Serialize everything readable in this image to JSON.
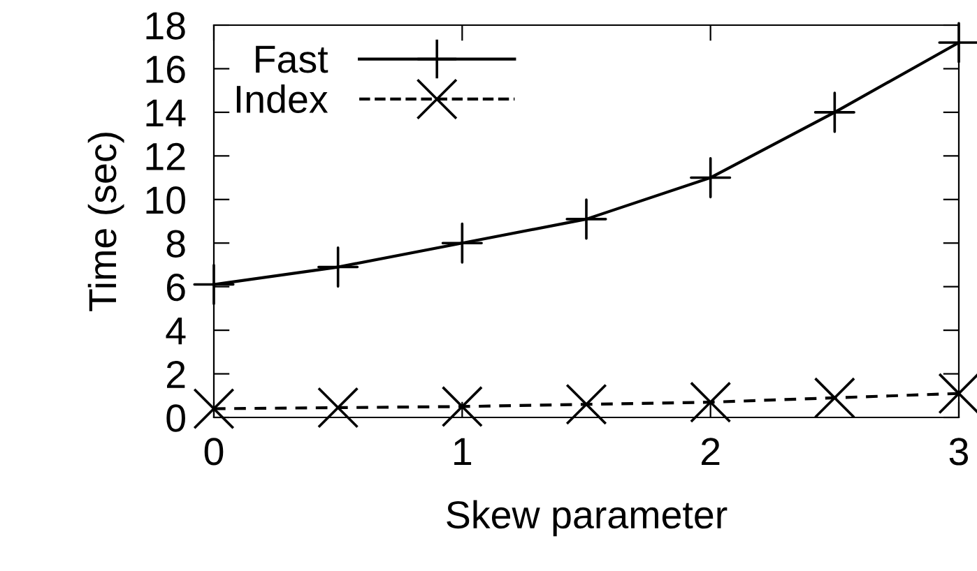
{
  "chart_data": {
    "type": "line",
    "xlabel": "Skew parameter",
    "ylabel": "Time (sec)",
    "x": [
      0,
      0.5,
      1,
      1.5,
      2,
      2.5,
      3
    ],
    "series": [
      {
        "name": "Fast",
        "color": "#000000",
        "values": [
          6.1,
          6.9,
          8.0,
          9.1,
          11.0,
          14.0,
          17.2
        ],
        "marker": "cross",
        "line_style": "solid"
      },
      {
        "name": "Index",
        "color": "#000000",
        "values": [
          0.4,
          0.45,
          0.5,
          0.6,
          0.7,
          0.9,
          1.1
        ],
        "marker": "x",
        "line_style": "dashed"
      }
    ],
    "xlim": [
      0,
      3
    ],
    "ylim": [
      0,
      18
    ],
    "xticks": [
      0,
      1,
      2,
      3
    ],
    "yticks": [
      0,
      2,
      4,
      6,
      8,
      10,
      12,
      14,
      16,
      18
    ],
    "grid": false,
    "legend": "top left"
  }
}
